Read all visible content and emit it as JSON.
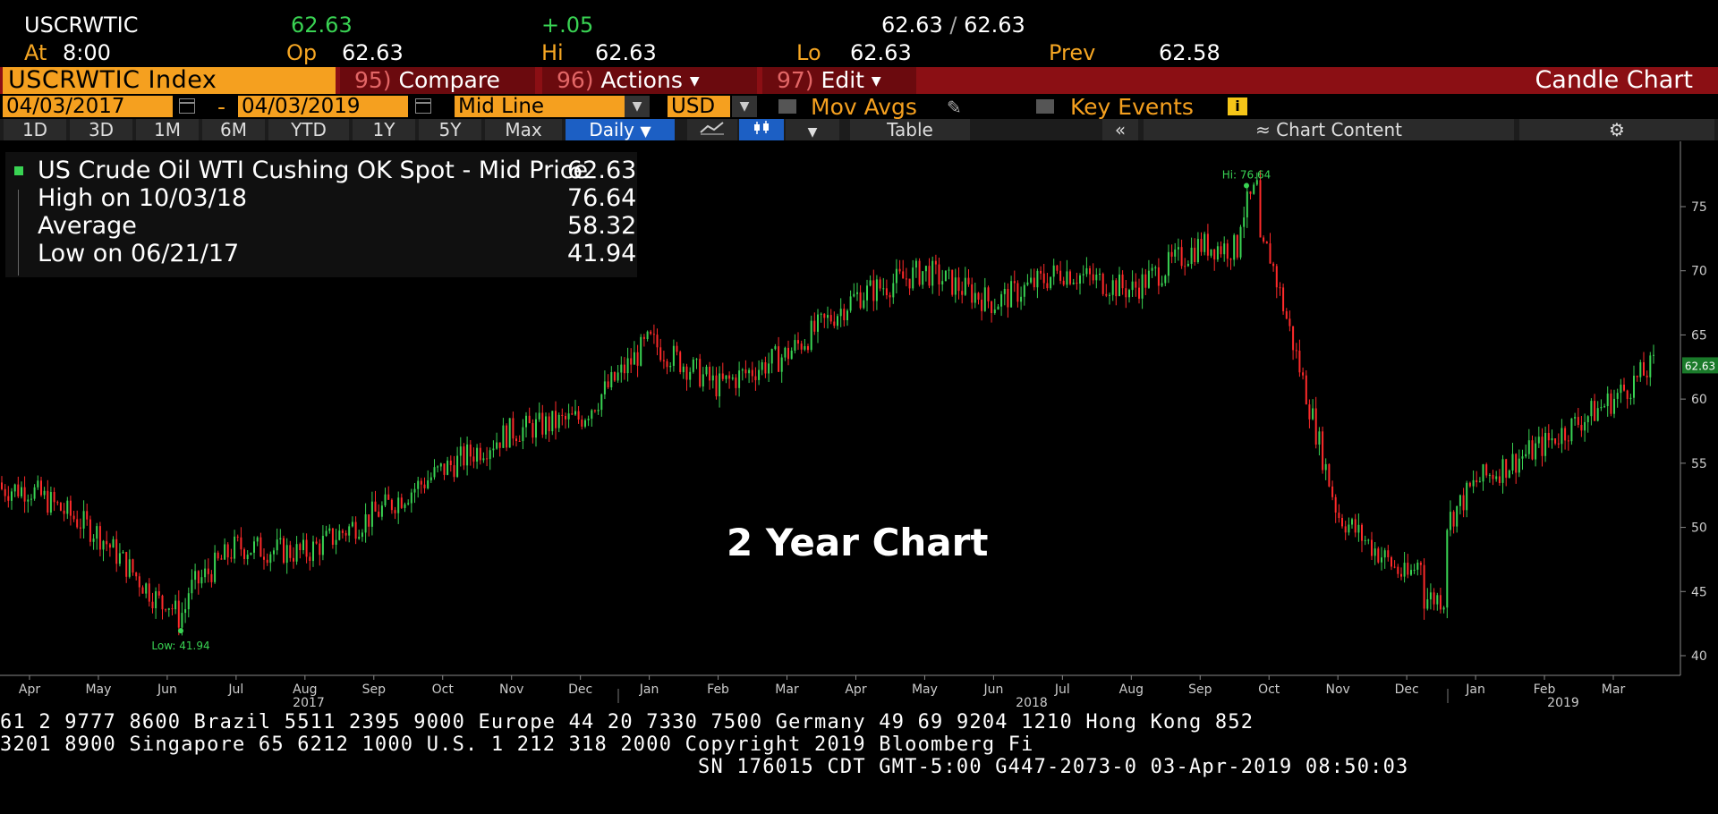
{
  "quote": {
    "ticker": "USCRWTIC",
    "last": "62.63",
    "change": "+.05",
    "bid_ask": "62.63",
    "bid_ask2": "62.63",
    "at_label": "At",
    "time": "8:00",
    "open_label": "Op",
    "open": "62.63",
    "hi_label": "Hi",
    "hi": "62.63",
    "lo_label": "Lo",
    "lo": "62.63",
    "prev_label": "Prev",
    "prev": "62.58"
  },
  "function_bar": {
    "security": "USCRWTIC Index",
    "compare_num": "95)",
    "compare": "Compare",
    "actions_num": "96)",
    "actions": "Actions",
    "edit_num": "97)",
    "edit": "Edit",
    "chart_type": "Candle Chart"
  },
  "options": {
    "start_date": "04/03/2017",
    "dash": "-",
    "end_date": "04/03/2019",
    "line_mode": "Mid Line",
    "currency": "USD",
    "mov_avgs": "Mov Avgs",
    "key_events": "Key Events"
  },
  "toolbar": {
    "periods": [
      "1D",
      "3D",
      "1M",
      "6M",
      "YTD",
      "1Y",
      "5Y",
      "Max"
    ],
    "frequency": "Daily",
    "table": "Table",
    "chart_content": "Chart Content"
  },
  "legend": {
    "series_name": "US Crude Oil WTI Cushing OK Spot - Mid Price",
    "series_value": "62.63",
    "high_label": "High on 10/03/18",
    "high_value": "76.64",
    "avg_label": "Average",
    "avg_value": "58.32",
    "low_label": "Low on 06/21/17",
    "low_value": "41.94"
  },
  "colors": {
    "up": "#39d353",
    "down": "#ff2a2a",
    "accent": "#f5a01f",
    "bar": "#8b0f14"
  },
  "chart_data": {
    "type": "candlestick",
    "title": "2 Year Chart",
    "ylim": [
      39,
      79
    ],
    "yticks": [
      40,
      45,
      50,
      55,
      60,
      65,
      70,
      75
    ],
    "x_tick_labels": [
      "Apr",
      "May",
      "Jun",
      "Jul",
      "Aug",
      "Sep",
      "Oct",
      "Nov",
      "Dec",
      "Jan",
      "Feb",
      "Mar",
      "Apr",
      "May",
      "Jun",
      "Jul",
      "Aug",
      "Sep",
      "Oct",
      "Nov",
      "Dec",
      "Jan",
      "Feb",
      "Mar"
    ],
    "year_labels": [
      "2017",
      "2018",
      "2019"
    ],
    "last_value_label": "62.63",
    "high_annotation": "Hi: 76.64",
    "low_annotation": "Low: 41.94",
    "high": 76.64,
    "low": 41.94,
    "x": [
      "2017-04",
      "2017-05",
      "2017-06",
      "2017-07",
      "2017-08",
      "2017-09",
      "2017-10",
      "2017-11",
      "2017-12",
      "2018-01",
      "2018-02",
      "2018-03",
      "2018-04",
      "2018-05",
      "2018-06",
      "2018-07",
      "2018-08",
      "2018-09",
      "2018-10",
      "2018-11",
      "2018-12",
      "2019-01",
      "2019-02",
      "2019-03",
      "2019-04"
    ],
    "close": [
      53.0,
      49.5,
      43.5,
      48.5,
      48.0,
      51.0,
      54.5,
      57.5,
      58.5,
      64.5,
      61.0,
      63.5,
      68.0,
      70.0,
      67.5,
      70.0,
      68.5,
      72.0,
      71.5,
      51.0,
      46.0,
      53.5,
      56.5,
      60.0,
      62.63
    ]
  },
  "footer": {
    "line1": "61 2 9777 8600 Brazil 5511 2395 9000 Europe 44 20 7330 7500 Germany 49 69 9204 1210 Hong Kong 852",
    "line2": "3201 8900       Singapore 65 6212 1000       U.S. 1 212 318 2000        Copyright 2019 Bloomberg Fi",
    "line3": "SN 176015 CDT  GMT-5:00 G447-2073-0 03-Apr-2019 08:50:03"
  }
}
